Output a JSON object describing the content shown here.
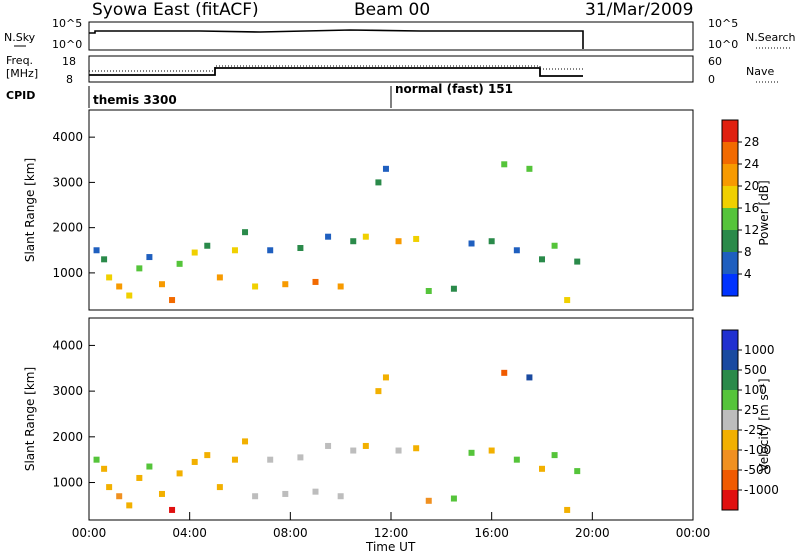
{
  "header": {
    "station": "Syowa East (fitACF)",
    "beam": "Beam 00",
    "date": "31/Mar/2009"
  },
  "top_panels": {
    "nsky_label": "N.Sky",
    "nsky_ticks": [
      "10^5",
      "10^0"
    ],
    "nsearch_label": "N.Search",
    "nsearch_ticks": [
      "10^5",
      "10^0"
    ],
    "freq_label_line1": "Freq.",
    "freq_label_line2": "[MHz]",
    "freq_ticks": [
      "18",
      "8"
    ],
    "nave_label": "Nave",
    "nave_ticks": [
      "60",
      "0"
    ],
    "cpid_label": "CPID",
    "cpid_segments": [
      "themis 3300",
      "normal (fast) 151"
    ]
  },
  "x_axis": {
    "label": "Time UT",
    "ticks": [
      "00:00",
      "04:00",
      "08:00",
      "12:00",
      "16:00",
      "20:00",
      "00:00"
    ]
  },
  "colors": {
    "power_scale": [
      "#0033ff",
      "#1f5fbf",
      "#2a8a4a",
      "#55c43a",
      "#f0d000",
      "#f79a00",
      "#f26a00",
      "#e02010"
    ],
    "velocity_scale": [
      "#e01010",
      "#f05a00",
      "#f09020",
      "#f2b000",
      "#bdbdbd",
      "#55c43a",
      "#2a8a4a",
      "#1a4aa0",
      "#2030d0"
    ]
  },
  "chart_data": [
    {
      "type": "heatmap",
      "name": "power",
      "ylabel": "Slant Range [km]",
      "yticks": [
        "1000",
        "2000",
        "3000",
        "4000"
      ],
      "ylim": [
        180,
        4600
      ],
      "xlim": [
        0,
        24
      ],
      "colorbar_label": "Power [dB]",
      "colorbar_ticks": [
        "4",
        "8",
        "12",
        "16",
        "20",
        "24",
        "28"
      ],
      "colorbar_range": [
        0,
        30
      ],
      "points": [
        {
          "t": 0.3,
          "r": 1500,
          "v": 6
        },
        {
          "t": 0.6,
          "r": 1300,
          "v": 8
        },
        {
          "t": 0.8,
          "r": 900,
          "v": 18
        },
        {
          "t": 1.2,
          "r": 700,
          "v": 22
        },
        {
          "t": 1.6,
          "r": 500,
          "v": 16
        },
        {
          "t": 2.0,
          "r": 1100,
          "v": 12
        },
        {
          "t": 2.4,
          "r": 1350,
          "v": 6
        },
        {
          "t": 2.9,
          "r": 750,
          "v": 20
        },
        {
          "t": 3.3,
          "r": 400,
          "v": 26
        },
        {
          "t": 3.6,
          "r": 1200,
          "v": 14
        },
        {
          "t": 4.2,
          "r": 1450,
          "v": 18
        },
        {
          "t": 4.7,
          "r": 1600,
          "v": 10
        },
        {
          "t": 5.2,
          "r": 900,
          "v": 20
        },
        {
          "t": 5.8,
          "r": 1500,
          "v": 16
        },
        {
          "t": 6.2,
          "r": 1900,
          "v": 8
        },
        {
          "t": 6.6,
          "r": 700,
          "v": 18
        },
        {
          "t": 7.2,
          "r": 1500,
          "v": 6
        },
        {
          "t": 7.8,
          "r": 750,
          "v": 22
        },
        {
          "t": 8.4,
          "r": 1550,
          "v": 8
        },
        {
          "t": 9.0,
          "r": 800,
          "v": 24
        },
        {
          "t": 9.5,
          "r": 1800,
          "v": 6
        },
        {
          "t": 10.0,
          "r": 700,
          "v": 20
        },
        {
          "t": 10.5,
          "r": 1700,
          "v": 10
        },
        {
          "t": 11.0,
          "r": 1800,
          "v": 18
        },
        {
          "t": 11.5,
          "r": 3000,
          "v": 8
        },
        {
          "t": 11.8,
          "r": 3300,
          "v": 6
        },
        {
          "t": 12.3,
          "r": 1700,
          "v": 20
        },
        {
          "t": 13.0,
          "r": 1750,
          "v": 16
        },
        {
          "t": 13.5,
          "r": 600,
          "v": 14
        },
        {
          "t": 14.5,
          "r": 650,
          "v": 8
        },
        {
          "t": 15.2,
          "r": 1650,
          "v": 6
        },
        {
          "t": 16.0,
          "r": 1700,
          "v": 8
        },
        {
          "t": 16.5,
          "r": 3400,
          "v": 12
        },
        {
          "t": 17.0,
          "r": 1500,
          "v": 6
        },
        {
          "t": 17.5,
          "r": 3300,
          "v": 14
        },
        {
          "t": 18.0,
          "r": 1300,
          "v": 8
        },
        {
          "t": 18.5,
          "r": 1600,
          "v": 12
        },
        {
          "t": 19.0,
          "r": 400,
          "v": 18
        },
        {
          "t": 19.4,
          "r": 1250,
          "v": 8
        }
      ]
    },
    {
      "type": "heatmap",
      "name": "velocity",
      "ylabel": "Slant Range [km]",
      "yticks": [
        "1000",
        "2000",
        "3000",
        "4000"
      ],
      "ylim": [
        180,
        4600
      ],
      "xlim": [
        0,
        24
      ],
      "colorbar_label": "Velocity [m s⁻¹]",
      "colorbar_ticks": [
        "-1000",
        "-500",
        "-100",
        "-25",
        "25",
        "100",
        "500",
        "1000"
      ],
      "colorbar_range": [
        -1250,
        1250
      ],
      "points": [
        {
          "t": 0.3,
          "r": 1500,
          "v": 400
        },
        {
          "t": 0.6,
          "r": 1300,
          "v": -300
        },
        {
          "t": 0.8,
          "r": 900,
          "v": -200
        },
        {
          "t": 1.2,
          "r": 700,
          "v": -600
        },
        {
          "t": 1.6,
          "r": 500,
          "v": -150
        },
        {
          "t": 2.0,
          "r": 1100,
          "v": -250
        },
        {
          "t": 2.4,
          "r": 1350,
          "v": 200
        },
        {
          "t": 2.9,
          "r": 750,
          "v": -400
        },
        {
          "t": 3.3,
          "r": 400,
          "v": -1100
        },
        {
          "t": 3.6,
          "r": 1200,
          "v": -300
        },
        {
          "t": 4.2,
          "r": 1450,
          "v": -400
        },
        {
          "t": 4.7,
          "r": 1600,
          "v": -200
        },
        {
          "t": 5.2,
          "r": 900,
          "v": -300
        },
        {
          "t": 5.8,
          "r": 1500,
          "v": -400
        },
        {
          "t": 6.2,
          "r": 1900,
          "v": -150
        },
        {
          "t": 6.6,
          "r": 700,
          "v": -100
        },
        {
          "t": 7.2,
          "r": 1500,
          "v": 60
        },
        {
          "t": 7.8,
          "r": 750,
          "v": -60
        },
        {
          "t": 8.4,
          "r": 1550,
          "v": 0
        },
        {
          "t": 9.0,
          "r": 800,
          "v": -80
        },
        {
          "t": 9.5,
          "r": 1800,
          "v": 10
        },
        {
          "t": 10.0,
          "r": 700,
          "v": -60
        },
        {
          "t": 10.5,
          "r": 1700,
          "v": 0
        },
        {
          "t": 11.0,
          "r": 1800,
          "v": -200
        },
        {
          "t": 11.5,
          "r": 3000,
          "v": -400
        },
        {
          "t": 11.8,
          "r": 3300,
          "v": -300
        },
        {
          "t": 12.3,
          "r": 1700,
          "v": 0
        },
        {
          "t": 13.0,
          "r": 1750,
          "v": -200
        },
        {
          "t": 13.5,
          "r": 600,
          "v": -600
        },
        {
          "t": 14.5,
          "r": 650,
          "v": 150
        },
        {
          "t": 15.2,
          "r": 1650,
          "v": 200
        },
        {
          "t": 16.0,
          "r": 1700,
          "v": -300
        },
        {
          "t": 16.5,
          "r": 3400,
          "v": -700
        },
        {
          "t": 17.0,
          "r": 1500,
          "v": 300
        },
        {
          "t": 17.5,
          "r": 3300,
          "v": 900
        },
        {
          "t": 18.0,
          "r": 1300,
          "v": -200
        },
        {
          "t": 18.5,
          "r": 1600,
          "v": 400
        },
        {
          "t": 19.0,
          "r": 400,
          "v": -150
        },
        {
          "t": 19.4,
          "r": 1250,
          "v": 300
        }
      ]
    }
  ]
}
